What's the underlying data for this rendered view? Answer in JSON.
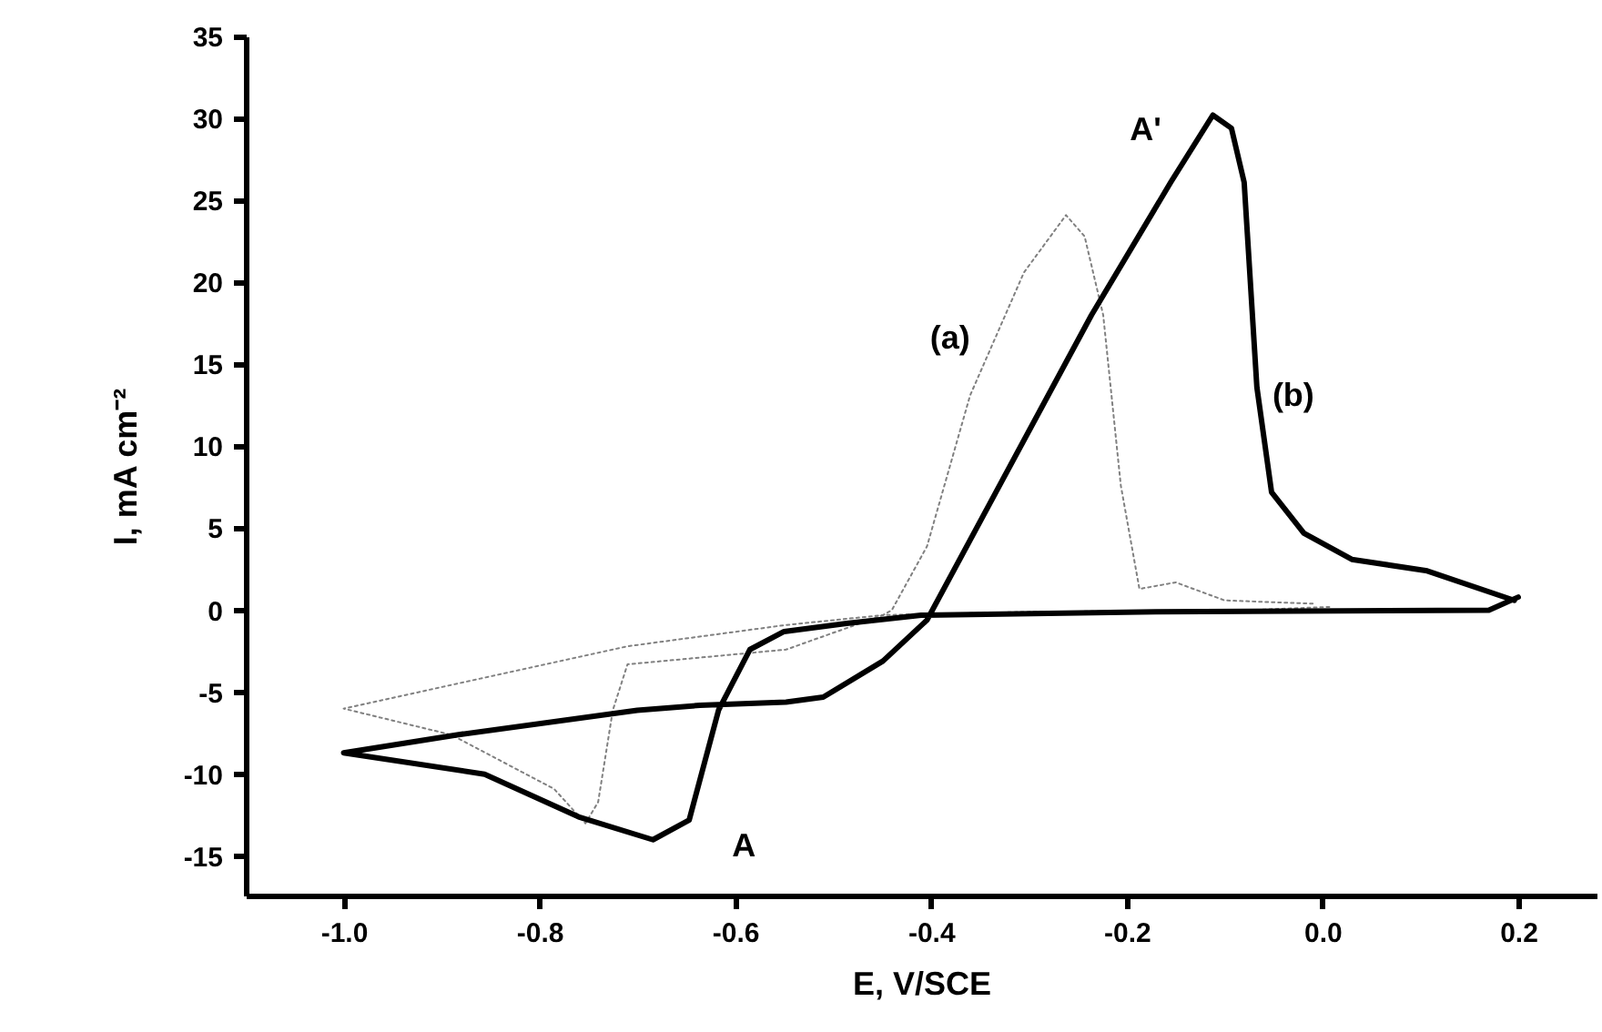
{
  "chart_data": {
    "type": "line",
    "xlabel": "E, V/SCE",
    "ylabel": "I, mA cm⁻²",
    "xlim": [
      -1.1,
      0.28
    ],
    "ylim": [
      -17.4,
      35
    ],
    "xticks": [
      {
        "value": -1,
        "label": "-1.0"
      },
      -0.8,
      -0.6,
      -0.4,
      -0.2,
      {
        "value": 0,
        "label": "0.0"
      },
      0.2
    ],
    "yticks": [
      -15,
      -10,
      -5,
      0,
      5,
      10,
      15,
      20,
      25,
      30,
      35
    ],
    "grid": false,
    "legend": false,
    "marker": "none",
    "series": [
      {
        "color": "#808080",
        "line_style": "dotted",
        "x": [
          0.007,
          -0.08,
          -0.3,
          -0.449,
          -0.548,
          -0.71,
          -0.725,
          -0.74,
          -0.753,
          -0.785,
          -0.89,
          -1.0,
          -0.71,
          -0.548,
          -0.449,
          -0.44,
          -0.404,
          -0.36,
          -0.305,
          -0.262,
          -0.243,
          -0.224,
          -0.206,
          -0.187,
          -0.15,
          -0.1,
          -0.01
        ],
        "values": [
          0.2,
          0,
          -0.1,
          -0.3,
          -2.4,
          -3.3,
          -6.1,
          -11.7,
          -13,
          -10.9,
          -7.6,
          -6.0,
          -2.2,
          -0.9,
          -0.3,
          0,
          3.9,
          13.1,
          20.6,
          24.1,
          22.8,
          18,
          7.6,
          1.3,
          1.7,
          0.6,
          0.4
        ]
      },
      {
        "color": "#000000",
        "line_style": "solid",
        "x": [
          0.2,
          0.17,
          -0.17,
          -0.41,
          -0.486,
          -0.55,
          -0.585,
          -0.617,
          -0.647,
          -0.684,
          -0.76,
          -0.856,
          -1.0,
          -0.884,
          -0.7,
          -0.636,
          -0.548,
          -0.51,
          -0.449,
          -0.404,
          -0.33,
          -0.236,
          -0.155,
          -0.112,
          -0.093,
          -0.08,
          -0.067,
          -0.052,
          -0.019,
          0.03,
          0.107,
          0.196
        ],
        "values": [
          0.8,
          0,
          -0.1,
          -0.3,
          -0.8,
          -1.3,
          -2.4,
          -6.1,
          -12.8,
          -14,
          -12.6,
          -10,
          -8.7,
          -7.6,
          -6.1,
          -5.8,
          -5.6,
          -5.3,
          -3.1,
          -0.6,
          7.6,
          18,
          26.1,
          30.2,
          29.4,
          26.1,
          13.6,
          7.2,
          4.7,
          3.1,
          2.4,
          0.6
        ]
      }
    ],
    "annotations": [
      {
        "text": "A",
        "x": -0.684,
        "y": -14
      },
      {
        "text": "A'",
        "x": -0.112,
        "y": 30.2
      },
      {
        "text": "(a)",
        "x": -0.36,
        "y": 13.1
      },
      {
        "text": "(b)",
        "x": -0.067,
        "y": 13.6
      }
    ]
  }
}
